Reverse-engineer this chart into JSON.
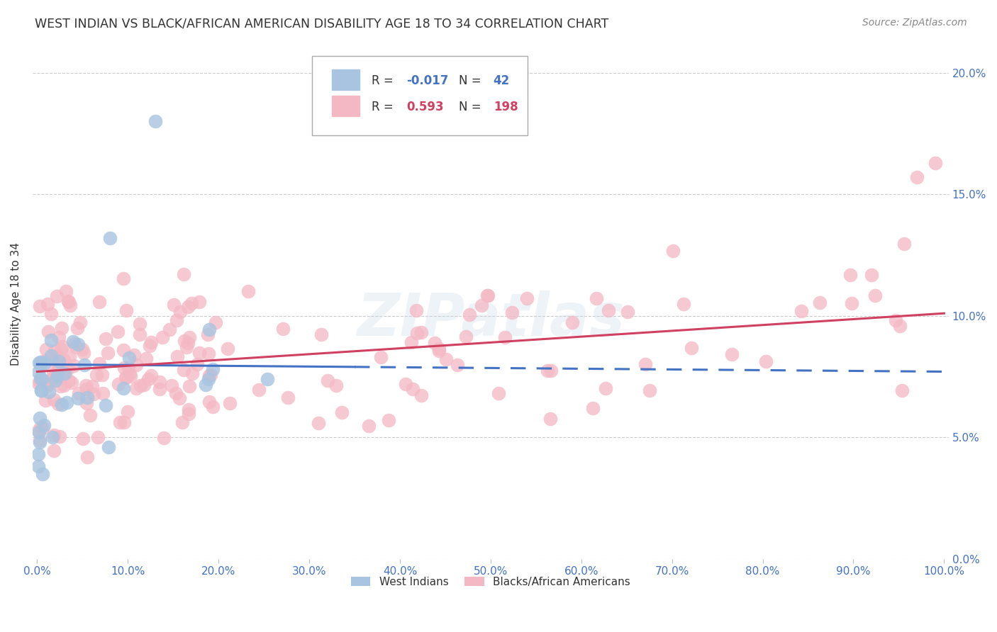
{
  "title": "WEST INDIAN VS BLACK/AFRICAN AMERICAN DISABILITY AGE 18 TO 34 CORRELATION CHART",
  "source": "Source: ZipAtlas.com",
  "ylabel_label": "Disability Age 18 to 34",
  "west_indians_color": "#a8c4e0",
  "west_indians_line_color": "#4472c4",
  "black_african_color": "#f4b8c4",
  "black_african_line_color": "#d04060",
  "background_color": "#ffffff",
  "grid_color": "#cccccc",
  "title_color": "#333333",
  "axis_color": "#4472c4",
  "watermark": "ZIPatlas",
  "R_wi": -0.017,
  "N_wi": 42,
  "R_ba": 0.593,
  "N_ba": 198,
  "ylim": [
    0.0,
    0.21
  ],
  "xlim": [
    -0.005,
    1.005
  ],
  "y_tick_vals": [
    0.0,
    0.05,
    0.1,
    0.15,
    0.2
  ],
  "y_tick_labels": [
    "0.0%",
    "5.0%",
    "10.0%",
    "15.0%",
    "20.0%"
  ],
  "x_tick_vals": [
    0.0,
    0.1,
    0.2,
    0.3,
    0.4,
    0.5,
    0.6,
    0.7,
    0.8,
    0.9,
    1.0
  ],
  "x_tick_labels": [
    "0.0%",
    "10.0%",
    "20.0%",
    "30.0%",
    "40.0%",
    "50.0%",
    "60.0%",
    "70.0%",
    "80.0%",
    "90.0%",
    "100.0%"
  ],
  "wi_line_solid_end": 0.35,
  "ba_line_start_y": 0.077,
  "ba_line_end_y": 0.101,
  "wi_line_start_y": 0.08,
  "wi_line_end_y": 0.077
}
